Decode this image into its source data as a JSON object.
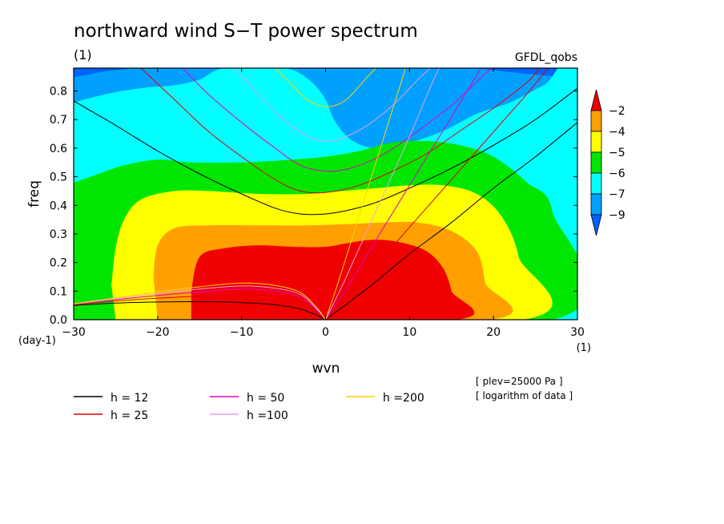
{
  "chart_data": {
    "type": "heatmap",
    "title": "northward wind S−T power spectrum",
    "subtitle": "(1)",
    "source_label": "GFDL_qobs",
    "xlabel": "wvn",
    "ylabel": "freq",
    "x_unit": "(1)",
    "y_unit": "(day-1)",
    "xlim": [
      -30,
      30
    ],
    "ylim": [
      0,
      0.88
    ],
    "x_ticks": [
      {
        "value": -30,
        "label": "−30"
      },
      {
        "value": -20,
        "label": "−20"
      },
      {
        "value": -10,
        "label": "−10"
      },
      {
        "value": 0,
        "label": "0"
      },
      {
        "value": 10,
        "label": "10"
      },
      {
        "value": 20,
        "label": "20"
      },
      {
        "value": 30,
        "label": "30"
      }
    ],
    "y_ticks": [
      {
        "value": 0.0,
        "label": "0.0"
      },
      {
        "value": 0.1,
        "label": "0.1"
      },
      {
        "value": 0.2,
        "label": "0.2"
      },
      {
        "value": 0.3,
        "label": "0.3"
      },
      {
        "value": 0.4,
        "label": "0.4"
      },
      {
        "value": 0.5,
        "label": "0.5"
      },
      {
        "value": 0.6,
        "label": "0.6"
      },
      {
        "value": 0.7,
        "label": "0.7"
      },
      {
        "value": 0.8,
        "label": "0.8"
      }
    ],
    "colorbar": {
      "labels": [
        "−2",
        "−4",
        "−5",
        "−6",
        "−7",
        "−9"
      ],
      "colors": [
        "#f00000",
        "#ffa000",
        "#ffff00",
        "#00e600",
        "#00ffff",
        "#00a0ff",
        "#0064ff"
      ]
    },
    "contour_bands": [
      {
        "color": "#00a0ff",
        "points": [
          [
            -30,
            0
          ],
          [
            30,
            0
          ],
          [
            30,
            0.88
          ],
          [
            -30,
            0.88
          ]
        ]
      },
      {
        "color": "#0064ff",
        "points": [
          [
            -30,
            0.88
          ],
          [
            -30,
            0.85
          ],
          [
            -26,
            0.87
          ],
          [
            -22,
            0.88
          ]
        ]
      },
      {
        "color": "#0064ff",
        "points": [
          [
            18,
            0.88
          ],
          [
            24,
            0.86
          ],
          [
            30,
            0.85
          ],
          [
            30,
            0.88
          ]
        ]
      },
      {
        "color": "#00ffff",
        "points": [
          [
            -30,
            0
          ],
          [
            30,
            0
          ],
          [
            30,
            0.87
          ],
          [
            26,
            0.82
          ],
          [
            22,
            0.76
          ],
          [
            18,
            0.72
          ],
          [
            14,
            0.66
          ],
          [
            10,
            0.62
          ],
          [
            6,
            0.6
          ],
          [
            3,
            0.63
          ],
          [
            1,
            0.7
          ],
          [
            0,
            0.77
          ],
          [
            -2,
            0.84
          ],
          [
            -5,
            0.88
          ],
          [
            -12,
            0.88
          ],
          [
            -15,
            0.84
          ],
          [
            -18,
            0.82
          ],
          [
            -22,
            0.81
          ],
          [
            -26,
            0.79
          ],
          [
            -30,
            0.76
          ]
        ]
      },
      {
        "color": "#00e600",
        "points": [
          [
            -30,
            0
          ],
          [
            27,
            0
          ],
          [
            27,
            0.38
          ],
          [
            24,
            0.48
          ],
          [
            20,
            0.57
          ],
          [
            16,
            0.61
          ],
          [
            12,
            0.625
          ],
          [
            8,
            0.62
          ],
          [
            4,
            0.59
          ],
          [
            0,
            0.57
          ],
          [
            -4,
            0.56
          ],
          [
            -10,
            0.55
          ],
          [
            -16,
            0.55
          ],
          [
            -20,
            0.56
          ],
          [
            -24,
            0.54
          ],
          [
            -28,
            0.5
          ],
          [
            -30,
            0.48
          ]
        ]
      },
      {
        "color": "#ffff00",
        "points": [
          [
            -25,
            0
          ],
          [
            23.5,
            0
          ],
          [
            23,
            0.22
          ],
          [
            21,
            0.36
          ],
          [
            18,
            0.44
          ],
          [
            14,
            0.47
          ],
          [
            10,
            0.47
          ],
          [
            6,
            0.46
          ],
          [
            2,
            0.45
          ],
          [
            -2,
            0.44
          ],
          [
            -8,
            0.44
          ],
          [
            -14,
            0.45
          ],
          [
            -18,
            0.45
          ],
          [
            -22,
            0.42
          ],
          [
            -24,
            0.35
          ],
          [
            -25,
            0.25
          ],
          [
            -25.5,
            0.12
          ]
        ]
      },
      {
        "color": "#ffa000",
        "points": [
          [
            -20,
            0
          ],
          [
            19.5,
            0
          ],
          [
            19,
            0.13
          ],
          [
            18,
            0.24
          ],
          [
            15,
            0.31
          ],
          [
            11,
            0.34
          ],
          [
            7,
            0.34
          ],
          [
            3,
            0.335
          ],
          [
            -2,
            0.33
          ],
          [
            -8,
            0.33
          ],
          [
            -14,
            0.33
          ],
          [
            -18,
            0.32
          ],
          [
            -20,
            0.26
          ],
          [
            -20.5,
            0.15
          ]
        ]
      },
      {
        "color": "#f00000",
        "points": [
          [
            -16,
            0
          ],
          [
            15.5,
            0
          ],
          [
            15,
            0.1
          ],
          [
            14,
            0.18
          ],
          [
            12,
            0.24
          ],
          [
            9,
            0.27
          ],
          [
            6,
            0.28
          ],
          [
            3,
            0.27
          ],
          [
            0,
            0.255
          ],
          [
            -4,
            0.255
          ],
          [
            -8,
            0.26
          ],
          [
            -12,
            0.25
          ],
          [
            -15,
            0.22
          ],
          [
            -16,
            0.1
          ]
        ]
      }
    ],
    "curve_series": [
      {
        "name": "h = 12",
        "color": "#000000",
        "points": [
          [
            -30,
            0.765
          ],
          [
            -25,
            0.68
          ],
          [
            -20,
            0.59
          ],
          [
            -15,
            0.51
          ],
          [
            -10,
            0.44
          ],
          [
            -6,
            0.39
          ],
          [
            -3,
            0.37
          ],
          [
            0,
            0.37
          ],
          [
            3,
            0.385
          ],
          [
            6,
            0.41
          ],
          [
            10,
            0.46
          ],
          [
            15,
            0.53
          ],
          [
            20,
            0.61
          ],
          [
            25,
            0.7
          ],
          [
            30,
            0.81
          ]
        ]
      },
      {
        "name": "h = 12",
        "color": "#000000",
        "points": [
          [
            0,
            0
          ],
          [
            5,
            0.11
          ],
          [
            10,
            0.23
          ],
          [
            15,
            0.34
          ],
          [
            20,
            0.46
          ],
          [
            25,
            0.57
          ],
          [
            30,
            0.69
          ]
        ]
      },
      {
        "name": "h = 12",
        "color": "#000000",
        "points": [
          [
            -30,
            0.05
          ],
          [
            -25,
            0.058
          ],
          [
            -20,
            0.062
          ],
          [
            -15,
            0.063
          ],
          [
            -10,
            0.06
          ],
          [
            -6,
            0.052
          ],
          [
            -3,
            0.037
          ],
          [
            -1,
            0.015
          ],
          [
            0,
            0
          ]
        ]
      },
      {
        "name": "h = 25",
        "color": "#e00000",
        "points": [
          [
            -22,
            0.88
          ],
          [
            -18,
            0.77
          ],
          [
            -14,
            0.66
          ],
          [
            -10,
            0.57
          ],
          [
            -6,
            0.49
          ],
          [
            -3,
            0.45
          ],
          [
            0,
            0.445
          ],
          [
            4,
            0.47
          ],
          [
            8,
            0.52
          ],
          [
            12,
            0.58
          ],
          [
            16,
            0.66
          ],
          [
            20,
            0.74
          ],
          [
            24,
            0.83
          ],
          [
            25.5,
            0.88
          ]
        ]
      },
      {
        "name": "h = 25",
        "color": "#e00000",
        "points": [
          [
            0,
            0
          ],
          [
            3,
            0.09
          ],
          [
            6,
            0.19
          ],
          [
            9,
            0.29
          ],
          [
            12,
            0.39
          ],
          [
            15,
            0.49
          ],
          [
            18,
            0.59
          ],
          [
            21,
            0.69
          ],
          [
            24,
            0.79
          ],
          [
            26.5,
            0.88
          ]
        ]
      },
      {
        "name": "h = 25",
        "color": "#e00000",
        "points": [
          [
            -30,
            0.052
          ],
          [
            -25,
            0.065
          ],
          [
            -20,
            0.075
          ],
          [
            -15,
            0.083
          ],
          [
            -10,
            0.088
          ],
          [
            -6,
            0.082
          ],
          [
            -3,
            0.062
          ],
          [
            -1,
            0.026
          ],
          [
            0,
            0
          ]
        ]
      },
      {
        "name": "h = 50",
        "color": "#e000c0",
        "points": [
          [
            -17,
            0.88
          ],
          [
            -14,
            0.79
          ],
          [
            -10,
            0.69
          ],
          [
            -6,
            0.6
          ],
          [
            -3,
            0.54
          ],
          [
            0,
            0.52
          ],
          [
            3,
            0.53
          ],
          [
            7,
            0.58
          ],
          [
            11,
            0.66
          ],
          [
            15,
            0.75
          ],
          [
            19,
            0.86
          ],
          [
            19.8,
            0.88
          ]
        ]
      },
      {
        "name": "h = 50",
        "color": "#e000c0",
        "points": [
          [
            0,
            0
          ],
          [
            2.5,
            0.11
          ],
          [
            5,
            0.23
          ],
          [
            7.5,
            0.35
          ],
          [
            10,
            0.47
          ],
          [
            12.5,
            0.59
          ],
          [
            15,
            0.71
          ],
          [
            17.5,
            0.83
          ],
          [
            18.5,
            0.88
          ]
        ]
      },
      {
        "name": "h = 50",
        "color": "#e000c0",
        "points": [
          [
            -30,
            0.054
          ],
          [
            -25,
            0.07
          ],
          [
            -20,
            0.085
          ],
          [
            -15,
            0.097
          ],
          [
            -10,
            0.107
          ],
          [
            -6,
            0.1
          ],
          [
            -3,
            0.078
          ],
          [
            -1,
            0.032
          ],
          [
            0,
            0
          ]
        ]
      },
      {
        "name": "h =100",
        "color": "#e8a0e8",
        "points": [
          [
            -11,
            0.88
          ],
          [
            -8,
            0.79
          ],
          [
            -5,
            0.7
          ],
          [
            -2,
            0.64
          ],
          [
            0,
            0.625
          ],
          [
            2,
            0.635
          ],
          [
            5,
            0.68
          ],
          [
            8,
            0.75
          ],
          [
            11,
            0.84
          ],
          [
            12.5,
            0.88
          ]
        ]
      },
      {
        "name": "h =100",
        "color": "#e8a0e8",
        "points": [
          [
            0,
            0
          ],
          [
            2,
            0.12
          ],
          [
            4,
            0.25
          ],
          [
            6,
            0.38
          ],
          [
            8,
            0.51
          ],
          [
            10,
            0.64
          ],
          [
            12,
            0.78
          ],
          [
            13.5,
            0.88
          ]
        ]
      },
      {
        "name": "h =100",
        "color": "#e8a0e8",
        "points": [
          [
            -30,
            0.055
          ],
          [
            -25,
            0.073
          ],
          [
            -20,
            0.092
          ],
          [
            -15,
            0.107
          ],
          [
            -10,
            0.118
          ],
          [
            -6,
            0.11
          ],
          [
            -3,
            0.088
          ],
          [
            -1,
            0.036
          ],
          [
            0,
            0
          ]
        ]
      },
      {
        "name": "h =200",
        "color": "#ffd200",
        "points": [
          [
            -6,
            0.88
          ],
          [
            -4,
            0.82
          ],
          [
            -2,
            0.765
          ],
          [
            0,
            0.745
          ],
          [
            2,
            0.76
          ],
          [
            3.5,
            0.8
          ],
          [
            5,
            0.85
          ],
          [
            6,
            0.88
          ]
        ]
      },
      {
        "name": "h =200",
        "color": "#ffd200",
        "points": [
          [
            0,
            0
          ],
          [
            1.5,
            0.13
          ],
          [
            3,
            0.27
          ],
          [
            4.5,
            0.41
          ],
          [
            6,
            0.55
          ],
          [
            7.5,
            0.69
          ],
          [
            9,
            0.83
          ],
          [
            9.5,
            0.88
          ]
        ]
      },
      {
        "name": "h =200",
        "color": "#ffd200",
        "points": [
          [
            -30,
            0.056
          ],
          [
            -25,
            0.076
          ],
          [
            -20,
            0.097
          ],
          [
            -15,
            0.115
          ],
          [
            -10,
            0.128
          ],
          [
            -6,
            0.12
          ],
          [
            -3,
            0.095
          ],
          [
            -1,
            0.04
          ],
          [
            0,
            0
          ]
        ]
      }
    ],
    "legend": [
      {
        "name": "h = 12",
        "color": "#000000"
      },
      {
        "name": "h = 50",
        "color": "#e000c0"
      },
      {
        "name": "h =200",
        "color": "#ffd200"
      },
      {
        "name": "h = 25",
        "color": "#e00000"
      },
      {
        "name": "h =100",
        "color": "#e8a0e8"
      }
    ],
    "notes": [
      "[ plev=25000 Pa ]",
      "[ logarithm of data ]"
    ]
  }
}
